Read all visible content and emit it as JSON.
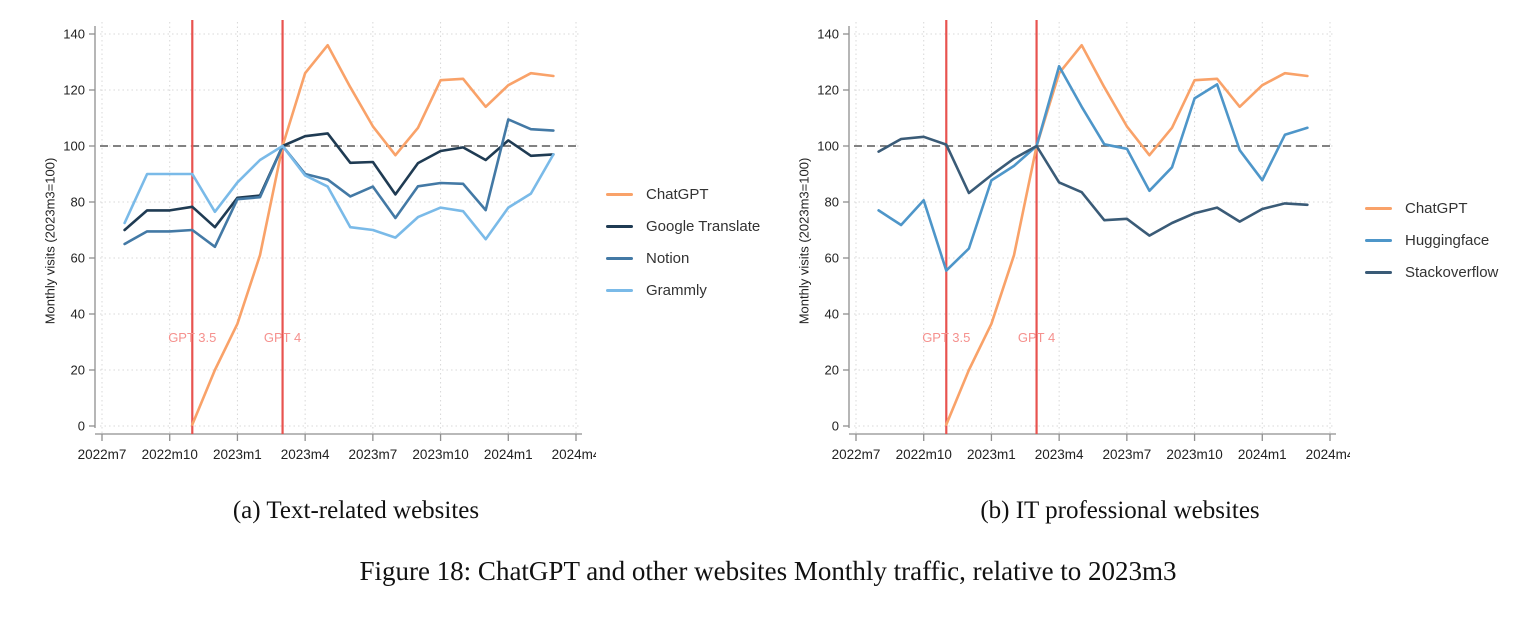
{
  "figure_caption": "Figure 18: ChatGPT and other websites Monthly traffic, relative to 2023m3",
  "colors": {
    "background": "#FFFFFF",
    "event_line": "#E8534F",
    "event_label": "#F5918E",
    "reference_line": "#595959",
    "grid": "#D8D8D8",
    "axis": "#8F8F8F",
    "tick_text": "#222222",
    "legend_text": "#333333"
  },
  "chart_data": [
    {
      "type": "line",
      "caption": "(a) Text-related websites",
      "ylabel": "Monthly visits (2023m3=100)",
      "ylim": [
        0,
        140
      ],
      "yticks": [
        0,
        20,
        40,
        60,
        80,
        100,
        120,
        140
      ],
      "x_tick_labels": [
        "2022m7",
        "2022m10",
        "2023m1",
        "2023m4",
        "2023m7",
        "2023m10",
        "2024m1",
        "2024m4"
      ],
      "months": [
        "2022m8",
        "2022m9",
        "2022m10",
        "2022m11",
        "2022m12",
        "2023m1",
        "2023m2",
        "2023m3",
        "2023m4",
        "2023m5",
        "2023m6",
        "2023m7",
        "2023m8",
        "2023m9",
        "2023m10",
        "2023m11",
        "2023m12",
        "2024m1",
        "2024m2",
        "2024m3"
      ],
      "grid": true,
      "legend_position": "right",
      "reference_line": 100,
      "events": [
        {
          "label": "GPT 3.5",
          "month": "2022m11",
          "label_value": 30
        },
        {
          "label": "GPT 4",
          "month": "2023m3",
          "label_value": 30
        }
      ],
      "series": [
        {
          "name": "ChatGPT",
          "color": "#F9A269",
          "values": [
            null,
            null,
            null,
            0.5,
            20,
            36.5,
            61,
            100,
            126,
            136,
            121,
            107,
            96.7,
            106.5,
            123.5,
            124,
            114,
            121.7,
            126,
            125
          ]
        },
        {
          "name": "Google Translate",
          "color": "#1F3B53",
          "values": [
            70,
            77,
            77,
            78.3,
            71,
            81.5,
            82.3,
            100,
            103.5,
            104.5,
            94,
            94.3,
            82.7,
            93.9,
            98.2,
            99.5,
            95,
            102,
            96.5,
            97
          ]
        },
        {
          "name": "Notion",
          "color": "#4379A5",
          "values": [
            65,
            69.5,
            69.5,
            70,
            64,
            81,
            81.7,
            100,
            90,
            88,
            82,
            85.5,
            74.3,
            85.6,
            86.8,
            86.5,
            77.1,
            109.5,
            106,
            105.5
          ]
        },
        {
          "name": "Grammly",
          "color": "#7ABAE8",
          "values": [
            72.5,
            90,
            90,
            90,
            76.5,
            87,
            95,
            100,
            89.5,
            85.5,
            71,
            70,
            67.3,
            74.6,
            78,
            76.7,
            66.7,
            78,
            83,
            97
          ]
        }
      ]
    },
    {
      "type": "line",
      "caption": "(b) IT professional websites",
      "ylabel": "Monthly visits (2023m3=100)",
      "ylim": [
        0,
        140
      ],
      "yticks": [
        0,
        20,
        40,
        60,
        80,
        100,
        120,
        140
      ],
      "x_tick_labels": [
        "2022m7",
        "2022m10",
        "2023m1",
        "2023m4",
        "2023m7",
        "2023m10",
        "2024m1",
        "2024m4"
      ],
      "months": [
        "2022m8",
        "2022m9",
        "2022m10",
        "2022m11",
        "2022m12",
        "2023m1",
        "2023m2",
        "2023m3",
        "2023m4",
        "2023m5",
        "2023m6",
        "2023m7",
        "2023m8",
        "2023m9",
        "2023m10",
        "2023m11",
        "2023m12",
        "2024m1",
        "2024m2",
        "2024m3"
      ],
      "grid": true,
      "legend_position": "right",
      "reference_line": 100,
      "events": [
        {
          "label": "GPT 3.5",
          "month": "2022m11",
          "label_value": 30
        },
        {
          "label": "GPT 4",
          "month": "2023m3",
          "label_value": 30
        }
      ],
      "series": [
        {
          "name": "ChatGPT",
          "color": "#F9A269",
          "values": [
            null,
            null,
            null,
            0.5,
            20,
            36.5,
            61,
            100,
            126,
            136,
            121,
            107,
            96.7,
            106.5,
            123.5,
            124,
            114,
            121.7,
            126,
            125
          ]
        },
        {
          "name": "Huggingface",
          "color": "#4E96C9",
          "values": [
            77,
            71.8,
            80.6,
            55.5,
            63.4,
            87.7,
            92.9,
            100,
            128.5,
            114,
            100.6,
            99,
            84,
            92.4,
            117,
            122,
            98.5,
            87.8,
            104,
            106.5
          ]
        },
        {
          "name": "Stackoverflow",
          "color": "#3A5B77",
          "values": [
            98,
            102.5,
            103.3,
            100.5,
            83.2,
            89.6,
            95.5,
            100,
            87,
            83.5,
            73.5,
            74,
            68,
            72.5,
            76,
            78,
            73,
            77.5,
            79.5,
            79
          ]
        }
      ]
    }
  ]
}
